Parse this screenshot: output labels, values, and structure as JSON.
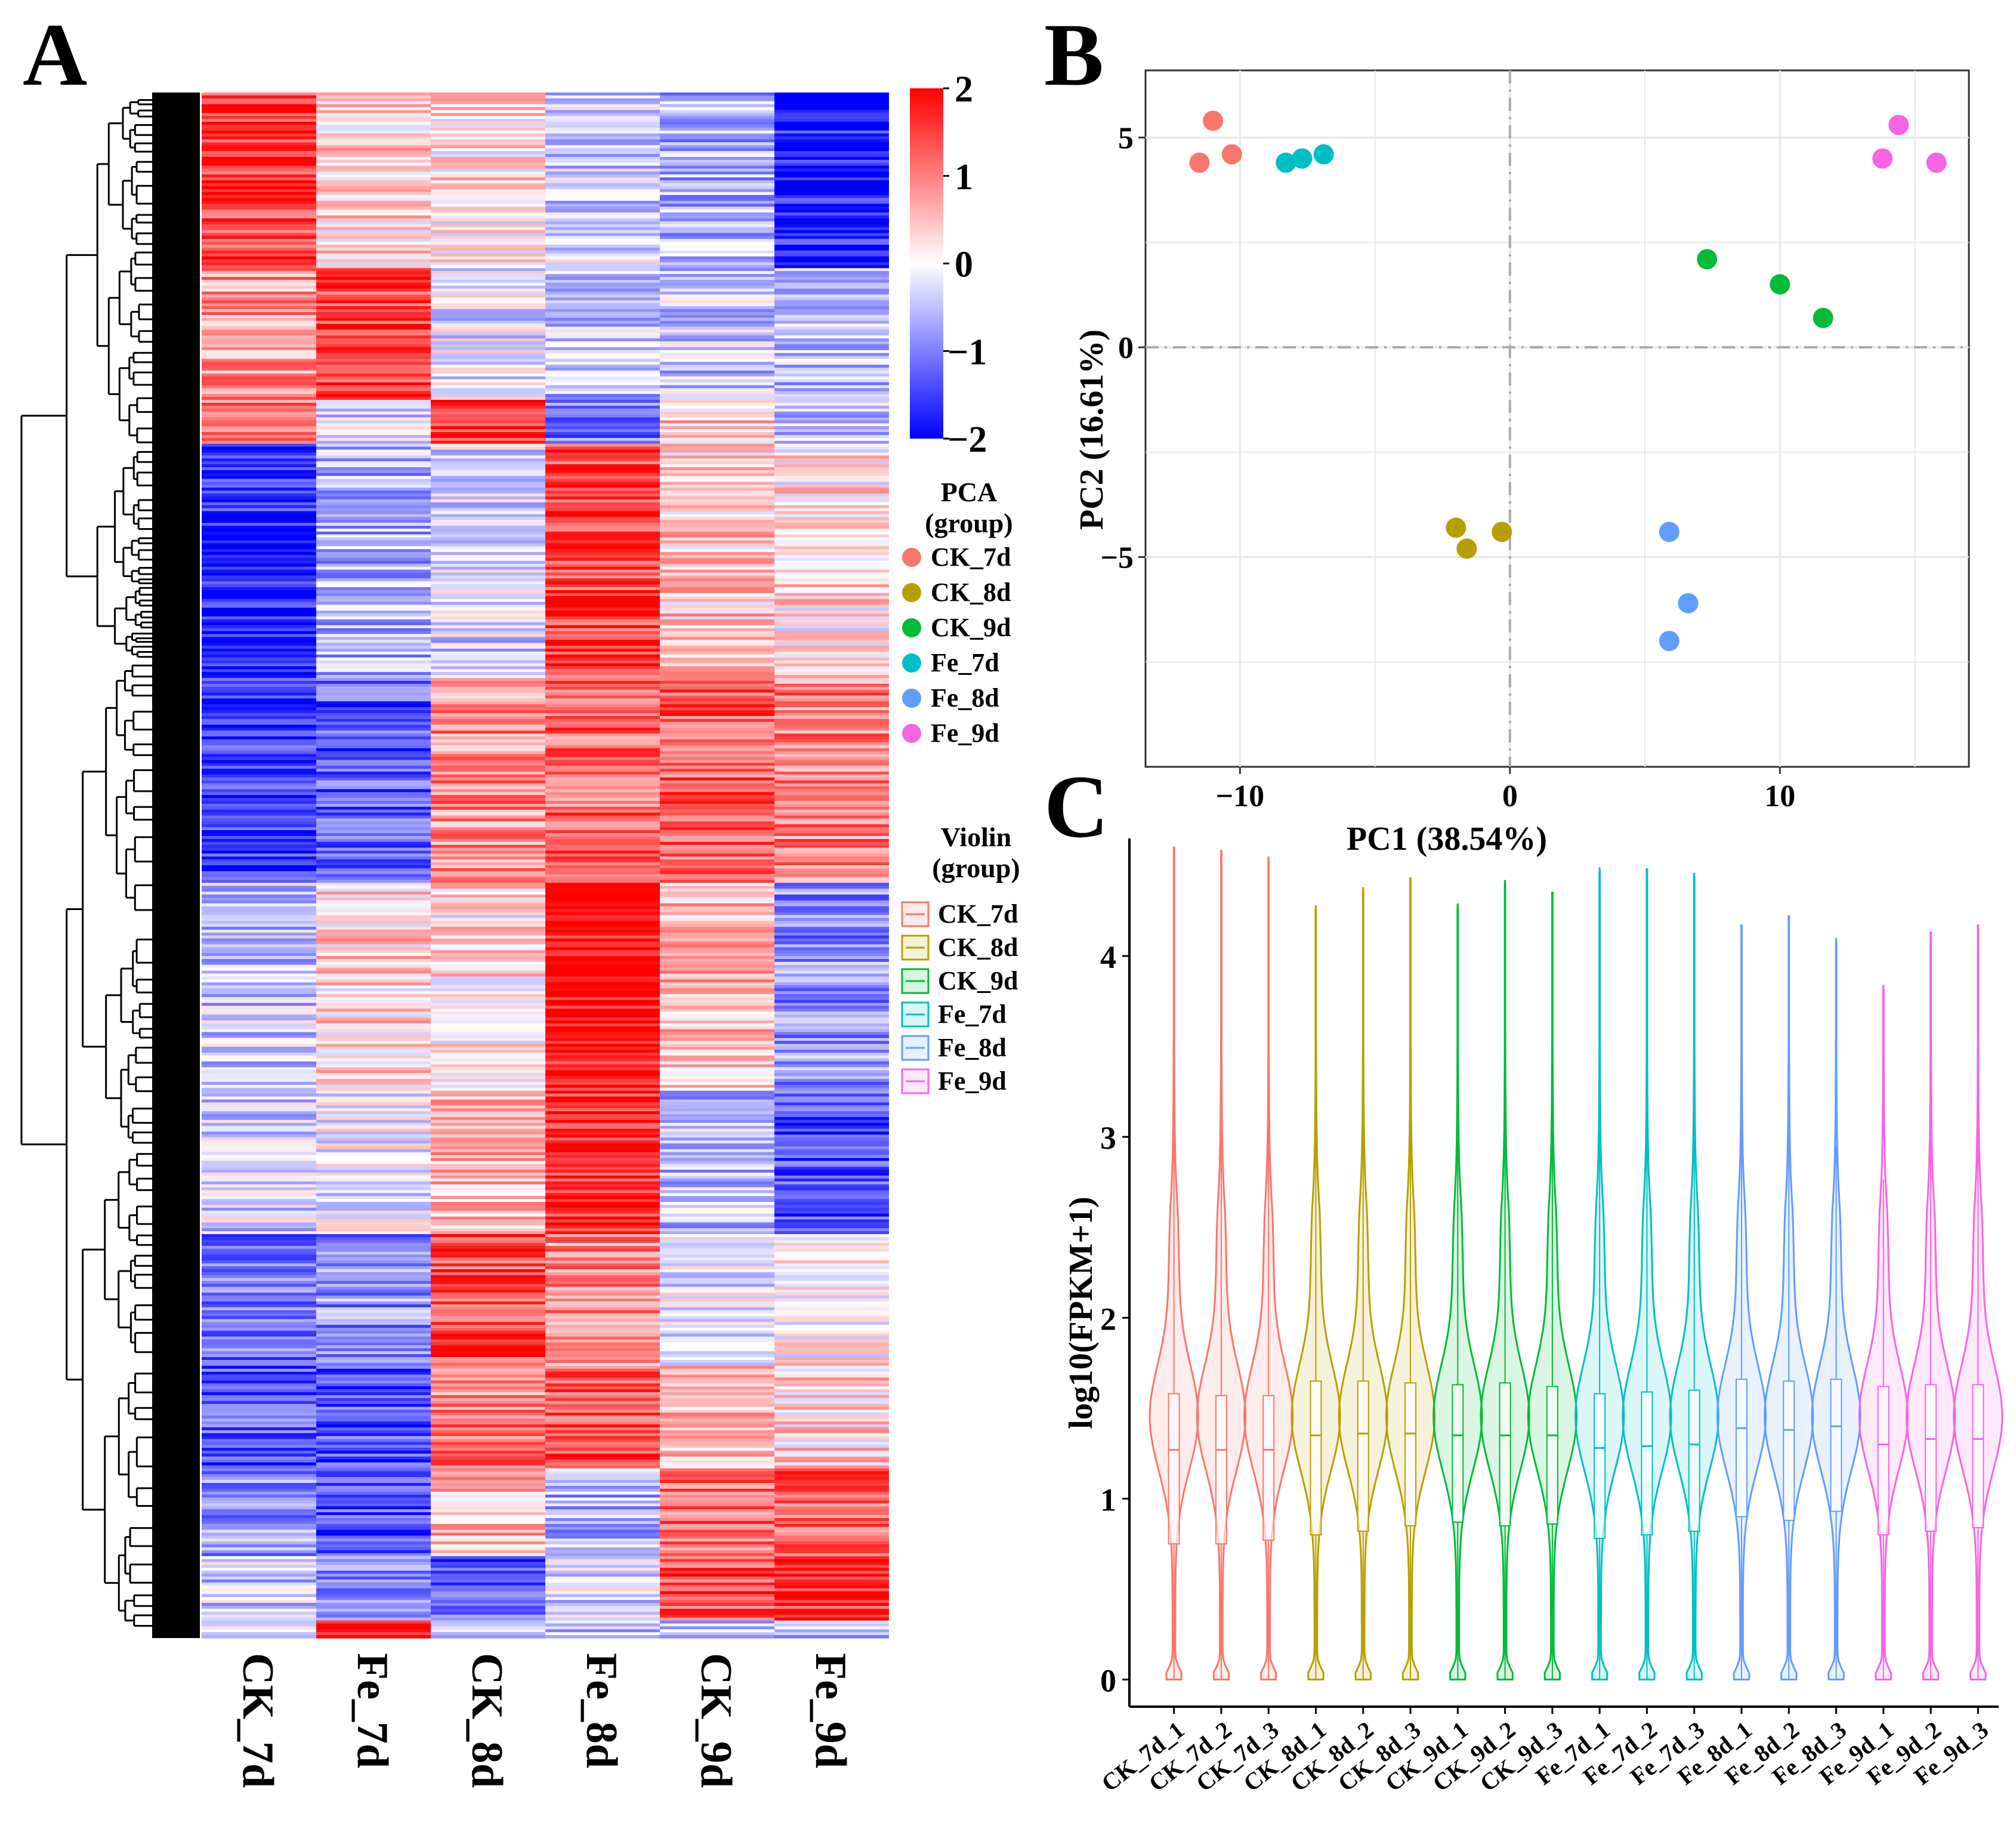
{
  "figure": {
    "panel_a_label": "A",
    "panel_b_label": "B",
    "panel_c_label": "C"
  },
  "colors": {
    "CK_7d": "#F8766D",
    "CK_8d": "#B79F00",
    "CK_9d": "#00BA38",
    "Fe_7d": "#00BFC4",
    "Fe_8d": "#619CFF",
    "Fe_9d": "#F564E3",
    "heat_low": "#0000FF",
    "heat_mid": "#FFFFFF",
    "heat_high": "#FF0000"
  },
  "chart_data": [
    {
      "type": "heatmap",
      "panel": "A",
      "columns": [
        "CK_7d",
        "Fe_7d",
        "CK_8d",
        "Fe_8d",
        "CK_9d",
        "Fe_9d"
      ],
      "color_scale": {
        "min": -2,
        "max": 2,
        "ticks": [
          "2",
          "1",
          "0",
          "−1",
          "−2"
        ]
      },
      "row_clusters": [
        {
          "rows": 60,
          "values": [
            1.5,
            0.3,
            0.2,
            -0.3,
            -0.6,
            -1.8
          ]
        },
        {
          "rows": 45,
          "values": [
            0.8,
            1.5,
            -0.2,
            -0.5,
            -0.4,
            -0.6
          ]
        },
        {
          "rows": 15,
          "values": [
            1.2,
            -0.2,
            1.5,
            -1.0,
            0.4,
            -0.4
          ]
        },
        {
          "rows": 80,
          "values": [
            -1.7,
            -0.6,
            -0.3,
            1.5,
            0.4,
            0.2
          ]
        },
        {
          "rows": 70,
          "values": [
            -1.6,
            -1.3,
            0.9,
            1.2,
            1.3,
            1.0
          ]
        },
        {
          "rows": 70,
          "values": [
            -0.4,
            0.3,
            0.2,
            1.9,
            0.5,
            -0.9
          ]
        },
        {
          "rows": 50,
          "values": [
            -0.3,
            -0.1,
            0.6,
            1.7,
            -0.5,
            -1.4
          ]
        },
        {
          "rows": 45,
          "values": [
            -1.2,
            -0.9,
            1.4,
            0.9,
            -0.1,
            0.1
          ]
        },
        {
          "rows": 35,
          "values": [
            -1.3,
            -1.4,
            1.0,
            1.4,
            0.5,
            0.3
          ]
        },
        {
          "rows": 30,
          "values": [
            -0.9,
            -1.4,
            0.5,
            -0.6,
            1.2,
            1.3
          ]
        },
        {
          "rows": 22,
          "values": [
            -0.4,
            -1.1,
            -1.3,
            -0.3,
            1.4,
            1.7
          ]
        },
        {
          "rows": 6,
          "values": [
            -0.2,
            2.0,
            -0.4,
            -0.4,
            -0.4,
            -0.5
          ]
        }
      ]
    },
    {
      "type": "scatter",
      "panel": "B",
      "xlabel": "PC1 (38.54%)",
      "ylabel": "PC2 (16.61%)",
      "xlim": [
        -13.5,
        17
      ],
      "ylim": [
        -10,
        6.6
      ],
      "xticks": [
        {
          "v": -10,
          "label": "−10"
        },
        {
          "v": 0,
          "label": "0"
        },
        {
          "v": 10,
          "label": "10"
        }
      ],
      "yticks": [
        {
          "v": 5,
          "label": "5"
        },
        {
          "v": 0,
          "label": "0"
        },
        {
          "v": -5,
          "label": "−5"
        }
      ],
      "legend_title": [
        "PCA",
        "(group)"
      ],
      "series": [
        {
          "name": "CK_7d",
          "x": [
            -11.5,
            -11.0,
            -10.3
          ],
          "y": [
            4.4,
            5.4,
            4.6
          ]
        },
        {
          "name": "CK_8d",
          "x": [
            -2.0,
            -1.6,
            -0.3
          ],
          "y": [
            -4.3,
            -4.8,
            -4.4
          ]
        },
        {
          "name": "CK_9d",
          "x": [
            7.3,
            10.0,
            11.6
          ],
          "y": [
            2.1,
            1.5,
            0.7
          ]
        },
        {
          "name": "Fe_7d",
          "x": [
            -8.3,
            -7.7,
            -6.9
          ],
          "y": [
            4.4,
            4.5,
            4.6
          ]
        },
        {
          "name": "Fe_8d",
          "x": [
            5.9,
            6.6,
            5.9
          ],
          "y": [
            -4.4,
            -6.1,
            -7.0
          ]
        },
        {
          "name": "Fe_9d",
          "x": [
            13.8,
            14.4,
            15.8
          ],
          "y": [
            4.5,
            5.3,
            4.4
          ]
        }
      ]
    },
    {
      "type": "violin",
      "panel": "C",
      "ylabel": "log10(FPKM+1)",
      "ylim": [
        -0.15,
        4.65
      ],
      "yticks": [
        "0",
        "1",
        "2",
        "3",
        "4"
      ],
      "legend_title": [
        "Violin",
        "(group)"
      ],
      "samples": [
        {
          "label": "CK_7d_1",
          "group": "CK_7d",
          "max": 4.6,
          "q1": 0.75,
          "median": 1.27,
          "q3": 1.58
        },
        {
          "label": "CK_7d_2",
          "group": "CK_7d",
          "max": 4.58,
          "q1": 0.75,
          "median": 1.27,
          "q3": 1.57
        },
        {
          "label": "CK_7d_3",
          "group": "CK_7d",
          "max": 4.55,
          "q1": 0.77,
          "median": 1.27,
          "q3": 1.57
        },
        {
          "label": "CK_8d_1",
          "group": "CK_8d",
          "max": 4.28,
          "q1": 0.8,
          "median": 1.35,
          "q3": 1.65
        },
        {
          "label": "CK_8d_2",
          "group": "CK_8d",
          "max": 4.38,
          "q1": 0.82,
          "median": 1.36,
          "q3": 1.65
        },
        {
          "label": "CK_8d_3",
          "group": "CK_8d",
          "max": 4.43,
          "q1": 0.85,
          "median": 1.36,
          "q3": 1.64
        },
        {
          "label": "CK_9d_1",
          "group": "CK_9d",
          "max": 4.29,
          "q1": 0.87,
          "median": 1.35,
          "q3": 1.63
        },
        {
          "label": "CK_9d_2",
          "group": "CK_9d",
          "max": 4.42,
          "q1": 0.85,
          "median": 1.35,
          "q3": 1.64
        },
        {
          "label": "CK_9d_3",
          "group": "CK_9d",
          "max": 4.35,
          "q1": 0.86,
          "median": 1.35,
          "q3": 1.62
        },
        {
          "label": "Fe_7d_1",
          "group": "Fe_7d",
          "max": 4.49,
          "q1": 0.78,
          "median": 1.28,
          "q3": 1.58
        },
        {
          "label": "Fe_7d_2",
          "group": "Fe_7d",
          "max": 4.48,
          "q1": 0.8,
          "median": 1.29,
          "q3": 1.59
        },
        {
          "label": "Fe_7d_3",
          "group": "Fe_7d",
          "max": 4.46,
          "q1": 0.82,
          "median": 1.3,
          "q3": 1.6
        },
        {
          "label": "Fe_8d_1",
          "group": "Fe_8d",
          "max": 4.17,
          "q1": 0.9,
          "median": 1.39,
          "q3": 1.66
        },
        {
          "label": "Fe_8d_2",
          "group": "Fe_8d",
          "max": 4.22,
          "q1": 0.88,
          "median": 1.38,
          "q3": 1.65
        },
        {
          "label": "Fe_8d_3",
          "group": "Fe_8d",
          "max": 4.1,
          "q1": 0.93,
          "median": 1.4,
          "q3": 1.66
        },
        {
          "label": "Fe_9d_1",
          "group": "Fe_9d",
          "max": 3.84,
          "q1": 0.8,
          "median": 1.3,
          "q3": 1.62
        },
        {
          "label": "Fe_9d_2",
          "group": "Fe_9d",
          "max": 4.13,
          "q1": 0.82,
          "median": 1.33,
          "q3": 1.63
        },
        {
          "label": "Fe_9d_3",
          "group": "Fe_9d",
          "max": 4.17,
          "q1": 0.84,
          "median": 1.33,
          "q3": 1.63
        }
      ]
    }
  ]
}
